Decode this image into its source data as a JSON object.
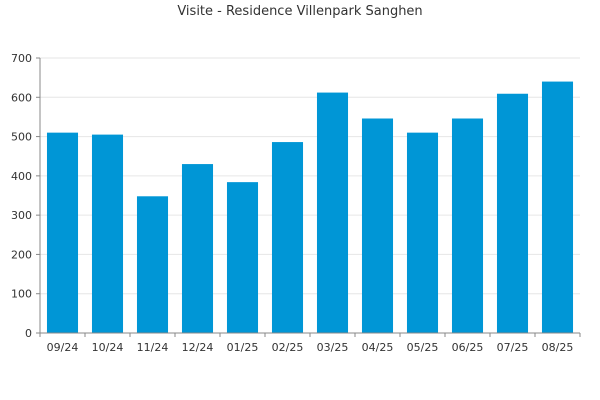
{
  "chart_data": {
    "type": "bar",
    "title": "Visite - Residence Villenpark Sanghen",
    "xlabel": "",
    "ylabel": "",
    "categories": [
      "09/24",
      "10/24",
      "11/24",
      "12/24",
      "01/25",
      "02/25",
      "03/25",
      "04/25",
      "05/25",
      "06/25",
      "07/25",
      "08/25"
    ],
    "values": [
      510,
      505,
      348,
      430,
      384,
      486,
      612,
      546,
      510,
      546,
      609,
      640
    ],
    "ylim": [
      0,
      700
    ],
    "yticks": [
      0,
      100,
      200,
      300,
      400,
      500,
      600,
      700
    ],
    "grid": true,
    "legend": "none",
    "colors": {
      "bar": "#0096D6",
      "grid": "#E6E6E6",
      "axis": "#888888",
      "text": "#333333"
    }
  }
}
